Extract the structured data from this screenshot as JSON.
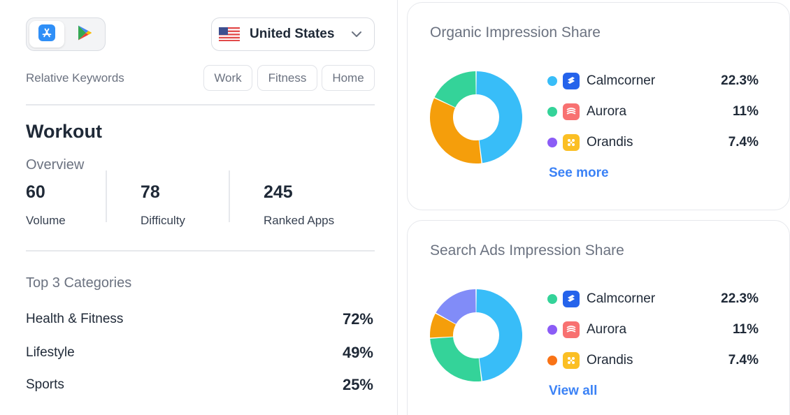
{
  "store": {
    "app_store_icon": "app-store-icon",
    "play_store_icon": "google-play-icon",
    "active": "app-store"
  },
  "country": {
    "flag_icon": "us-flag-icon",
    "selected": "United States"
  },
  "relative_keywords": {
    "label": "Relative Keywords",
    "chips": [
      "Work",
      "Fitness",
      "Home"
    ]
  },
  "keyword": {
    "title": "Workout",
    "overview_label": "Overview",
    "metrics": [
      {
        "value": "60",
        "label": "Volume"
      },
      {
        "value": "78",
        "label": "Difficulty"
      },
      {
        "value": "245",
        "label": "Ranked Apps"
      }
    ]
  },
  "categories": {
    "heading": "Top 3 Categories",
    "items": [
      {
        "name": "Health & Fitness",
        "value": "72%"
      },
      {
        "name": "Lifestyle",
        "value": "49%"
      },
      {
        "name": "Sports",
        "value": "25%"
      }
    ]
  },
  "organic": {
    "title": "Organic Impression Share",
    "legend": [
      {
        "name": "Calmcorner",
        "value": "22.3%",
        "dot_color": "#38bdf8",
        "icon": "calmcorner-app-icon"
      },
      {
        "name": "Aurora",
        "value": "11%",
        "dot_color": "#34d399",
        "icon": "aurora-app-icon"
      },
      {
        "name": "Orandis",
        "value": "7.4%",
        "dot_color": "#8b5cf6",
        "icon": "orandis-app-icon"
      }
    ],
    "link": "See more",
    "segments": [
      {
        "share": 0.48,
        "color": "#38bdf8"
      },
      {
        "share": 0.34,
        "color": "#f59e0b"
      },
      {
        "share": 0.18,
        "color": "#34d399"
      }
    ]
  },
  "ads": {
    "title": "Search Ads Impression Share",
    "legend": [
      {
        "name": "Calmcorner",
        "value": "22.3%",
        "dot_color": "#34d399",
        "icon": "calmcorner-app-icon"
      },
      {
        "name": "Aurora",
        "value": "11%",
        "dot_color": "#8b5cf6",
        "icon": "aurora-app-icon"
      },
      {
        "name": "Orandis",
        "value": "7.4%",
        "dot_color": "#f97316",
        "icon": "orandis-app-icon"
      }
    ],
    "link": "View all",
    "segments": [
      {
        "share": 0.48,
        "color": "#38bdf8"
      },
      {
        "share": 0.26,
        "color": "#34d399"
      },
      {
        "share": 0.09,
        "color": "#f59e0b"
      },
      {
        "share": 0.17,
        "color": "#818cf8"
      }
    ]
  }
}
